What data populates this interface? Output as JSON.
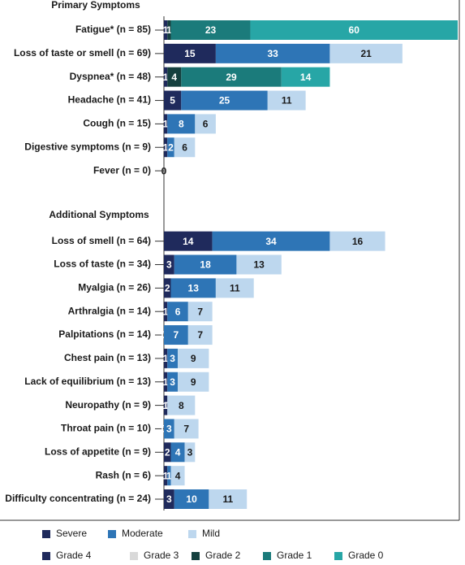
{
  "chart_data": {
    "type": "stacked-bar-horizontal",
    "sections": [
      "Primary Symptoms",
      "Additional Symptoms"
    ],
    "categories": [
      "Fatigue* (n = 85)",
      "Loss of taste or smell (n = 69)",
      "Dyspnea* (n = 48)",
      "Headache (n = 41)",
      "Cough (n = 15)",
      "Digestive symptoms (n = 9)",
      "Fever (n = 0)",
      null,
      null,
      "Loss of smell (n = 64)",
      "Loss of taste (n = 34)",
      "Myalgia (n = 26)",
      "Arthralgia (n = 14)",
      "Palpitations (n = 14)",
      "Chest pain (n = 13)",
      "Lack of equilibrium (n = 13)",
      "Neuropathy (n = 9)",
      "Throat pain (n = 10)",
      "Loss of appetite (n = 9)",
      "Rash (n = 6)",
      "Difficulty concentrating (n = 24)"
    ],
    "xlim": [
      0,
      85
    ],
    "series": [
      {
        "name": "Severe",
        "color": "#1f2a5c",
        "values": [
          null,
          15,
          null,
          5,
          1,
          1,
          0,
          null,
          null,
          14,
          3,
          2,
          1,
          0,
          1,
          1,
          1,
          0,
          2,
          1,
          3
        ]
      },
      {
        "name": "Moderate",
        "color": "#2e75b6",
        "values": [
          null,
          33,
          null,
          25,
          8,
          2,
          0,
          null,
          null,
          34,
          18,
          13,
          6,
          7,
          3,
          3,
          0,
          3,
          4,
          1,
          10
        ]
      },
      {
        "name": "Mild",
        "color": "#bdd7ee",
        "values": [
          null,
          21,
          null,
          11,
          6,
          6,
          0,
          null,
          null,
          16,
          13,
          11,
          7,
          7,
          9,
          9,
          8,
          7,
          3,
          4,
          11
        ]
      },
      {
        "name": "Grade 4",
        "color": "#1f2a5c",
        "values": [
          1,
          null,
          1,
          null,
          null,
          null,
          null,
          null,
          null,
          null,
          null,
          null,
          null,
          null,
          null,
          null,
          null,
          null,
          null,
          null,
          null
        ]
      },
      {
        "name": "Grade 3",
        "color": "#d9d9d9",
        "values": [
          null,
          null,
          null,
          null,
          null,
          null,
          null,
          null,
          null,
          null,
          null,
          null,
          null,
          null,
          null,
          null,
          null,
          null,
          null,
          null,
          null
        ]
      },
      {
        "name": "Grade 2",
        "color": "#15403f",
        "values": [
          1,
          null,
          4,
          null,
          null,
          null,
          null,
          null,
          null,
          null,
          null,
          null,
          null,
          null,
          null,
          null,
          null,
          null,
          null,
          null,
          null
        ]
      },
      {
        "name": "Grade 1",
        "color": "#1b7b7b",
        "values": [
          23,
          null,
          29,
          null,
          null,
          null,
          null,
          null,
          null,
          null,
          null,
          null,
          null,
          null,
          null,
          null,
          null,
          null,
          null,
          null,
          null
        ]
      },
      {
        "name": "Grade 0",
        "color": "#27a6a6",
        "values": [
          60,
          null,
          14,
          null,
          null,
          null,
          null,
          null,
          null,
          null,
          null,
          null,
          null,
          null,
          null,
          null,
          null,
          null,
          null,
          null,
          null
        ]
      }
    ]
  }
}
